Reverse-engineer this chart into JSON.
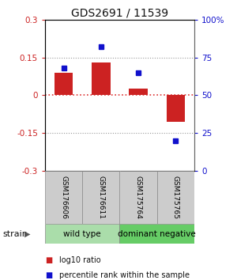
{
  "title": "GDS2691 / 11539",
  "samples": [
    "GSM176606",
    "GSM176611",
    "GSM175764",
    "GSM175765"
  ],
  "log10_ratio": [
    0.09,
    0.13,
    0.025,
    -0.105
  ],
  "percentile_rank": [
    68,
    82,
    65,
    20
  ],
  "groups": [
    {
      "label": "wild type",
      "color": "#aaddaa",
      "start": 0,
      "end": 1
    },
    {
      "label": "dominant negative",
      "color": "#66cc66",
      "start": 2,
      "end": 3
    }
  ],
  "group_label": "strain",
  "ylim": [
    -0.3,
    0.3
  ],
  "yticks_left": [
    -0.3,
    -0.15,
    0,
    0.15,
    0.3
  ],
  "yticks_right": [
    0,
    25,
    50,
    75,
    100
  ],
  "bar_color": "#cc2222",
  "dot_color": "#1111cc",
  "hline_color": "#dd3333",
  "bg_color": "#ffffff",
  "label_left_color": "#cc2222",
  "label_right_color": "#1111cc",
  "legend_red_label": "log10 ratio",
  "legend_blue_label": "percentile rank within the sample",
  "gray_box_color": "#cccccc",
  "title_fontsize": 10,
  "tick_fontsize": 7.5,
  "sample_fontsize": 6.5,
  "group_fontsize": 7.5,
  "legend_fontsize": 7
}
